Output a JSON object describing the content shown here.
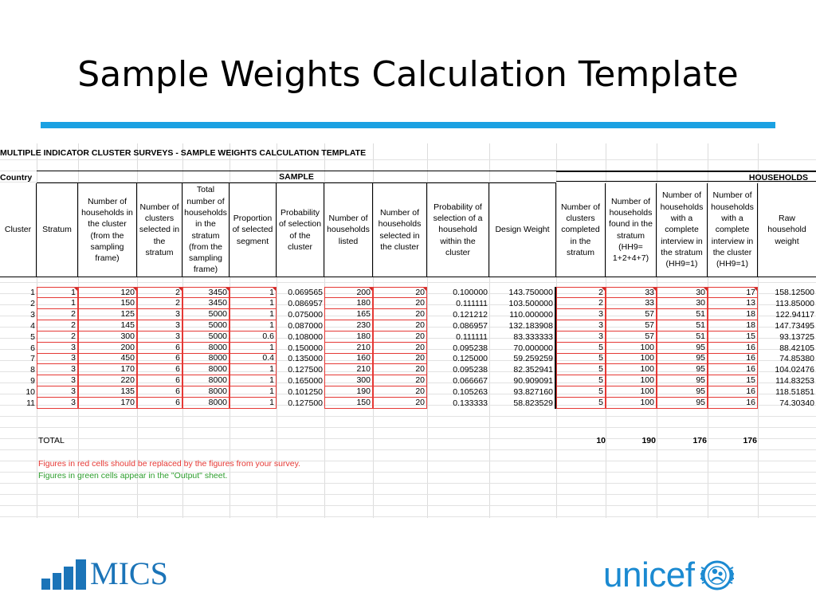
{
  "slide": {
    "title": "Sample Weights Calculation Template"
  },
  "sheet": {
    "heading": "MULTIPLE INDICATOR CLUSTER SURVEYS - SAMPLE WEIGHTS CALCULATION TEMPLATE",
    "country_label": "Country",
    "sample_label": "SAMPLE",
    "households_label": "HOUSEHOLDS",
    "columns": [
      "Cluster",
      "Stratum",
      "Number of households in the cluster (from the sampling frame)",
      "Number of clusters selected in the stratum",
      "Total number of households in the stratum (from the sampling frame)",
      "Proportion of selected segment",
      "Probability of selection of the cluster",
      "Number of households listed",
      "Number of households selected in the cluster",
      "Probability of selection of a household within the cluster",
      "Design Weight",
      "Number of clusters completed in the stratum",
      "Number of households found in the stratum (HH9= 1+2+4+7)",
      "Number of households with a complete interview in the stratum (HH9=1)",
      "Number of households with a complete interview in the cluster (HH9=1)",
      "Raw household weight"
    ],
    "rows": [
      [
        "1",
        "1",
        "120",
        "2",
        "3450",
        "1",
        "0.069565",
        "200",
        "20",
        "0.100000",
        "143.750000",
        "2",
        "33",
        "30",
        "17",
        "158.12500"
      ],
      [
        "2",
        "1",
        "150",
        "2",
        "3450",
        "1",
        "0.086957",
        "180",
        "20",
        "0.111111",
        "103.500000",
        "2",
        "33",
        "30",
        "13",
        "113.85000"
      ],
      [
        "3",
        "2",
        "125",
        "3",
        "5000",
        "1",
        "0.075000",
        "165",
        "20",
        "0.121212",
        "110.000000",
        "3",
        "57",
        "51",
        "18",
        "122.94117"
      ],
      [
        "4",
        "2",
        "145",
        "3",
        "5000",
        "1",
        "0.087000",
        "230",
        "20",
        "0.086957",
        "132.183908",
        "3",
        "57",
        "51",
        "18",
        "147.73495"
      ],
      [
        "5",
        "2",
        "300",
        "3",
        "5000",
        "0.6",
        "0.108000",
        "180",
        "20",
        "0.111111",
        "83.333333",
        "3",
        "57",
        "51",
        "15",
        "93.13725"
      ],
      [
        "6",
        "3",
        "200",
        "6",
        "8000",
        "1",
        "0.150000",
        "210",
        "20",
        "0.095238",
        "70.000000",
        "5",
        "100",
        "95",
        "16",
        "88.42105"
      ],
      [
        "7",
        "3",
        "450",
        "6",
        "8000",
        "0.4",
        "0.135000",
        "160",
        "20",
        "0.125000",
        "59.259259",
        "5",
        "100",
        "95",
        "16",
        "74.85380"
      ],
      [
        "8",
        "3",
        "170",
        "6",
        "8000",
        "1",
        "0.127500",
        "210",
        "20",
        "0.095238",
        "82.352941",
        "5",
        "100",
        "95",
        "16",
        "104.02476"
      ],
      [
        "9",
        "3",
        "220",
        "6",
        "8000",
        "1",
        "0.165000",
        "300",
        "20",
        "0.066667",
        "90.909091",
        "5",
        "100",
        "95",
        "15",
        "114.83253"
      ],
      [
        "10",
        "3",
        "135",
        "6",
        "8000",
        "1",
        "0.101250",
        "190",
        "20",
        "0.105263",
        "93.827160",
        "5",
        "100",
        "95",
        "16",
        "118.51851"
      ],
      [
        "11",
        "3",
        "170",
        "6",
        "8000",
        "1",
        "0.127500",
        "150",
        "20",
        "0.133333",
        "58.823529",
        "5",
        "100",
        "95",
        "16",
        "74.30340"
      ]
    ],
    "total_label": "TOTAL",
    "totals": {
      "clusters_completed": "10",
      "hh_found": "190",
      "complete_stratum": "176",
      "complete_cluster": "176"
    },
    "note_red": "Figures in red cells should be replaced by the figures from your survey.",
    "note_green": "Figures in green cells appear in the \"Output\" sheet."
  },
  "logos": {
    "mics": "MICS",
    "unicef": "unicef"
  },
  "colors": {
    "accent_rule": "#1ba1e2",
    "input_cell_border": "#e53935",
    "note_green": "#2e9e2e",
    "mics_blue": "#1b74b8",
    "unicef_blue": "#1b8ad1"
  }
}
